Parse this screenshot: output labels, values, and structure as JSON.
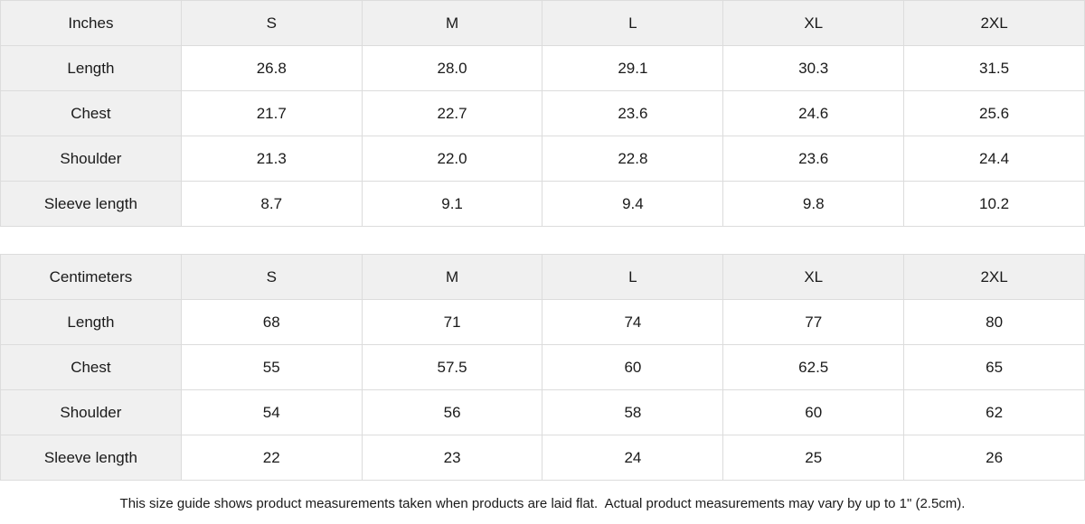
{
  "chart_data": [
    {
      "type": "table",
      "title": "Inches",
      "columns": [
        "Inches",
        "S",
        "M",
        "L",
        "XL",
        "2XL"
      ],
      "rows": [
        {
          "label": "Length",
          "values": [
            "26.8",
            "28.0",
            "29.1",
            "30.3",
            "31.5"
          ]
        },
        {
          "label": "Chest",
          "values": [
            "21.7",
            "22.7",
            "23.6",
            "24.6",
            "25.6"
          ]
        },
        {
          "label": "Shoulder",
          "values": [
            "21.3",
            "22.0",
            "22.8",
            "23.6",
            "24.4"
          ]
        },
        {
          "label": "Sleeve length",
          "values": [
            "8.7",
            "9.1",
            "9.4",
            "9.8",
            "10.2"
          ]
        }
      ]
    },
    {
      "type": "table",
      "title": "Centimeters",
      "columns": [
        "Centimeters",
        "S",
        "M",
        "L",
        "XL",
        "2XL"
      ],
      "rows": [
        {
          "label": "Length",
          "values": [
            "68",
            "71",
            "74",
            "77",
            "80"
          ]
        },
        {
          "label": "Chest",
          "values": [
            "55",
            "57.5",
            "60",
            "62.5",
            "65"
          ]
        },
        {
          "label": "Shoulder",
          "values": [
            "54",
            "56",
            "58",
            "60",
            "62"
          ]
        },
        {
          "label": "Sleeve length",
          "values": [
            "22",
            "23",
            "24",
            "25",
            "26"
          ]
        }
      ]
    }
  ],
  "footer": {
    "note": "This size guide shows product measurements taken when products are laid flat.  Actual product measurements may vary by up to 1\" (2.5cm)."
  }
}
